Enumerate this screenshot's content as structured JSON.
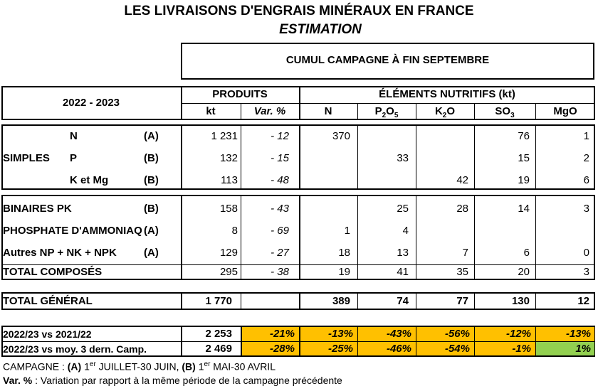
{
  "header": {
    "title": "LES LIVRAISONS D'ENGRAIS MINÉRAUX EN FRANCE",
    "subtitle": "ESTIMATION",
    "period": "CUMUL CAMPAGNE À FIN SEPTEMBRE"
  },
  "table": {
    "year_label": "2022 - 2023",
    "produits_label": "PRODUITS",
    "elements_label": "ÉLÉMENTS NUTRITIFS (kt)",
    "col_kt": "kt",
    "col_var": "Var. %",
    "col_n": "N",
    "col_p_base": "P",
    "col_p_sub1": "2",
    "col_p_mid": "O",
    "col_p_sub2": "5",
    "col_k_base": "K",
    "col_k_sub": "2",
    "col_k_end": "O",
    "col_s_base": "SO",
    "col_s_sub": "3",
    "col_mgo": "MgO",
    "simples_label": "SIMPLES",
    "rows": [
      {
        "label": "N",
        "type": "(A)",
        "kt": "1 231",
        "var": "- 12",
        "n": "370",
        "p": "",
        "k": "",
        "s": "76",
        "mg": "1"
      },
      {
        "label": "P",
        "type": "(B)",
        "kt": "132",
        "var": "- 15",
        "n": "",
        "p": "33",
        "k": "",
        "s": "15",
        "mg": "2"
      },
      {
        "label": "K et Mg",
        "type": "(B)",
        "kt": "113",
        "var": "- 48",
        "n": "",
        "p": "",
        "k": "42",
        "s": "19",
        "mg": "6"
      },
      {
        "label": "BINAIRES PK",
        "type": "(B)",
        "kt": "158",
        "var": "- 43",
        "n": "",
        "p": "25",
        "k": "28",
        "s": "14",
        "mg": "3"
      },
      {
        "label": "PHOSPHATE D'AMMONIAQ",
        "type": "(A)",
        "kt": "8",
        "var": "- 69",
        "n": "1",
        "p": "4",
        "k": "",
        "s": "",
        "mg": ""
      },
      {
        "label": "Autres NP + NK + NPK",
        "type": "(A)",
        "kt": "129",
        "var": "- 27",
        "n": "18",
        "p": "13",
        "k": "7",
        "s": "6",
        "mg": "0"
      },
      {
        "label": "TOTAL COMPOSÉS",
        "type": "",
        "kt": "295",
        "var": "- 38",
        "n": "19",
        "p": "41",
        "k": "35",
        "s": "20",
        "mg": "3"
      },
      {
        "label": "TOTAL GÉNÉRAL",
        "type": "",
        "kt": "1 770",
        "var": "",
        "n": "389",
        "p": "74",
        "k": "77",
        "s": "130",
        "mg": "12"
      },
      {
        "label": "2022/23 vs 2021/22",
        "type": "",
        "kt": "2 253",
        "var": "-21%",
        "n": "-13%",
        "p": "-43%",
        "k": "-56%",
        "s": "-12%",
        "mg": "-13%"
      },
      {
        "label": "2022/23 vs moy. 3 dern. Camp.",
        "type": "",
        "kt": "2 469",
        "var": "-28%",
        "n": "-25%",
        "p": "-46%",
        "k": "-54%",
        "s": "-1%",
        "mg": "1%"
      }
    ],
    "colors": {
      "orange": "#ffc000",
      "green": "#92d050"
    }
  },
  "footer": {
    "campagne_prefix": "CAMPAGNE : ",
    "a_label": "(A)",
    "a_num": " 1",
    "a_sup": "er",
    "a_text": " JUILLET-30 JUIN, ",
    "b_label": "(B)",
    "b_num": " 1",
    "b_sup": "er",
    "b_text": " MAI-30 AVRIL",
    "var_label": "Var. %",
    "var_text": " : Variation par rapport à la même période de la campagne précédente"
  }
}
